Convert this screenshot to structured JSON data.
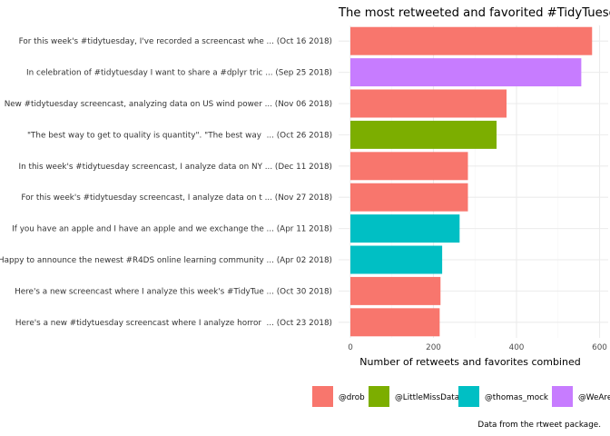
{
  "chart_data": {
    "type": "bar",
    "orientation": "horizontal",
    "title": "The most retweeted and favorited #TidyTuesday tweets",
    "xlabel": "Number of retweets and favorites combined",
    "ylabel": "",
    "caption": "Data from the rtweet package.",
    "xlim": [
      0,
      620
    ],
    "xticks": [
      0,
      200,
      400,
      600
    ],
    "grid": true,
    "legend_position": "bottom",
    "categories": [
      "For this week's #tidytuesday, I've recorded a screencast whe ... (Oct 16 2018)",
      "In celebration of #tidytuesday I want to share a #dplyr tric ... (Sep 25 2018)",
      "New #tidytuesday screencast, analyzing data on US wind power ... (Nov 06 2018)",
      "\"The best way to get to quality is quantity\". \"The best way  ... (Oct 26 2018)",
      "In this week's #tidytuesday screencast, I analyze data on NY ... (Dec 11 2018)",
      "For this week's #tidytuesday screencast, I analyze data on t ... (Nov 27 2018)",
      "If you have an apple and I have an apple and we exchange the ... (Apr 11 2018)",
      "Happy to announce the newest #R4DS online learning community ... (Apr 02 2018)",
      "Here's a new screencast where I analyze this week's #TidyTue ... (Oct 30 2018)",
      "Here's a new #tidytuesday screencast where I analyze horror  ... (Oct 23 2018)"
    ],
    "values": [
      582,
      556,
      376,
      352,
      283,
      283,
      263,
      221,
      217,
      215
    ],
    "groups": [
      "@drob",
      "@WeAreRLadies",
      "@drob",
      "@LittleMissData",
      "@drob",
      "@drob",
      "@thomas_mock",
      "@thomas_mock",
      "@drob",
      "@drob"
    ],
    "legend": [
      {
        "name": "@drob",
        "color": "#F8766D"
      },
      {
        "name": "@LittleMissData",
        "color": "#7CAE00"
      },
      {
        "name": "@thomas_mock",
        "color": "#00BFC4"
      },
      {
        "name": "@WeAreRLadies",
        "color": "#C77CFF"
      }
    ]
  }
}
